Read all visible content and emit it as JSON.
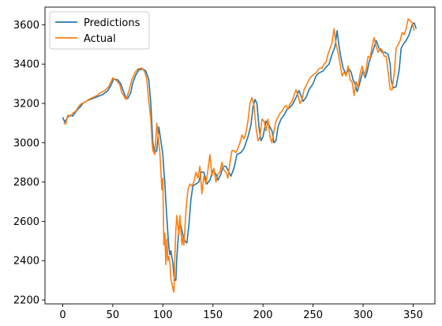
{
  "chart_data": {
    "type": "line",
    "title": "",
    "xlabel": "",
    "ylabel": "",
    "xlim": [
      -17.7,
      371.7
    ],
    "ylim": [
      2180,
      3690
    ],
    "xticks": [
      0,
      50,
      100,
      150,
      200,
      250,
      300,
      350
    ],
    "yticks": [
      2200,
      2400,
      2600,
      2800,
      3000,
      3200,
      3400,
      3600
    ],
    "grid": false,
    "legend_position": "upper-left",
    "colors": {
      "predictions": "#1f77b4",
      "actual": "#ff7f0e"
    },
    "series": [
      {
        "name": "Predictions",
        "key": "predictions",
        "points": [
          [
            0,
            3130
          ],
          [
            2,
            3105
          ],
          [
            5,
            3130
          ],
          [
            8,
            3140
          ],
          [
            10,
            3135
          ],
          [
            12,
            3150
          ],
          [
            15,
            3170
          ],
          [
            18,
            3185
          ],
          [
            20,
            3200
          ],
          [
            25,
            3215
          ],
          [
            30,
            3225
          ],
          [
            35,
            3235
          ],
          [
            40,
            3245
          ],
          [
            45,
            3265
          ],
          [
            48,
            3290
          ],
          [
            51,
            3325
          ],
          [
            55,
            3320
          ],
          [
            58,
            3300
          ],
          [
            60,
            3270
          ],
          [
            63,
            3230
          ],
          [
            65,
            3225
          ],
          [
            68,
            3255
          ],
          [
            70,
            3305
          ],
          [
            73,
            3345
          ],
          [
            76,
            3370
          ],
          [
            80,
            3375
          ],
          [
            83,
            3365
          ],
          [
            86,
            3320
          ],
          [
            88,
            3200
          ],
          [
            89,
            3100
          ],
          [
            90,
            3000
          ],
          [
            92,
            2950
          ],
          [
            94,
            2960
          ],
          [
            96,
            3080
          ],
          [
            98,
            3010
          ],
          [
            100,
            2940
          ],
          [
            101,
            2860
          ],
          [
            102,
            2800
          ],
          [
            103,
            2700
          ],
          [
            104,
            2620
          ],
          [
            105,
            2540
          ],
          [
            106,
            2470
          ],
          [
            107,
            2430
          ],
          [
            108,
            2450
          ],
          [
            110,
            2390
          ],
          [
            111,
            2320
          ],
          [
            112,
            2300
          ],
          [
            113,
            2300
          ],
          [
            114,
            2420
          ],
          [
            116,
            2560
          ],
          [
            118,
            2580
          ],
          [
            120,
            2530
          ],
          [
            122,
            2500
          ],
          [
            124,
            2490
          ],
          [
            126,
            2580
          ],
          [
            128,
            2710
          ],
          [
            130,
            2780
          ],
          [
            133,
            2790
          ],
          [
            136,
            2800
          ],
          [
            138,
            2850
          ],
          [
            141,
            2850
          ],
          [
            144,
            2790
          ],
          [
            147,
            2810
          ],
          [
            150,
            2860
          ],
          [
            153,
            2840
          ],
          [
            155,
            2810
          ],
          [
            158,
            2840
          ],
          [
            160,
            2880
          ],
          [
            163,
            2880
          ],
          [
            166,
            2850
          ],
          [
            168,
            2830
          ],
          [
            171,
            2870
          ],
          [
            174,
            2940
          ],
          [
            178,
            2950
          ],
          [
            181,
            2970
          ],
          [
            185,
            3030
          ],
          [
            188,
            3090
          ],
          [
            190,
            3180
          ],
          [
            192,
            3220
          ],
          [
            194,
            3200
          ],
          [
            196,
            3080
          ],
          [
            198,
            3010
          ],
          [
            200,
            3030
          ],
          [
            203,
            3110
          ],
          [
            206,
            3090
          ],
          [
            209,
            3060
          ],
          [
            211,
            3000
          ],
          [
            213,
            3010
          ],
          [
            215,
            3080
          ],
          [
            218,
            3120
          ],
          [
            221,
            3140
          ],
          [
            224,
            3170
          ],
          [
            227,
            3180
          ],
          [
            230,
            3200
          ],
          [
            233,
            3230
          ],
          [
            236,
            3265
          ],
          [
            238,
            3240
          ],
          [
            240,
            3210
          ],
          [
            243,
            3230
          ],
          [
            246,
            3270
          ],
          [
            250,
            3300
          ],
          [
            253,
            3340
          ],
          [
            256,
            3355
          ],
          [
            260,
            3365
          ],
          [
            263,
            3385
          ],
          [
            266,
            3400
          ],
          [
            269,
            3450
          ],
          [
            272,
            3490
          ],
          [
            274,
            3570
          ],
          [
            276,
            3490
          ],
          [
            278,
            3430
          ],
          [
            280,
            3380
          ],
          [
            283,
            3350
          ],
          [
            286,
            3375
          ],
          [
            288,
            3360
          ],
          [
            290,
            3320
          ],
          [
            292,
            3300
          ],
          [
            294,
            3260
          ],
          [
            296,
            3290
          ],
          [
            298,
            3330
          ],
          [
            300,
            3370
          ],
          [
            302,
            3330
          ],
          [
            304,
            3360
          ],
          [
            306,
            3410
          ],
          [
            308,
            3440
          ],
          [
            310,
            3470
          ],
          [
            313,
            3520
          ],
          [
            316,
            3480
          ],
          [
            319,
            3460
          ],
          [
            322,
            3460
          ],
          [
            325,
            3450
          ],
          [
            327,
            3400
          ],
          [
            328,
            3320
          ],
          [
            330,
            3280
          ],
          [
            333,
            3285
          ],
          [
            336,
            3370
          ],
          [
            338,
            3480
          ],
          [
            340,
            3500
          ],
          [
            343,
            3520
          ],
          [
            346,
            3550
          ],
          [
            349,
            3600
          ],
          [
            351,
            3610
          ],
          [
            353,
            3580
          ]
        ]
      },
      {
        "name": "Actual",
        "key": "actual",
        "points": [
          [
            1,
            3100
          ],
          [
            3,
            3095
          ],
          [
            5,
            3140
          ],
          [
            8,
            3135
          ],
          [
            10,
            3150
          ],
          [
            13,
            3160
          ],
          [
            16,
            3185
          ],
          [
            19,
            3200
          ],
          [
            22,
            3205
          ],
          [
            26,
            3220
          ],
          [
            30,
            3230
          ],
          [
            34,
            3240
          ],
          [
            38,
            3255
          ],
          [
            42,
            3265
          ],
          [
            46,
            3285
          ],
          [
            50,
            3330
          ],
          [
            54,
            3315
          ],
          [
            57,
            3295
          ],
          [
            59,
            3255
          ],
          [
            61,
            3240
          ],
          [
            63,
            3220
          ],
          [
            66,
            3260
          ],
          [
            69,
            3320
          ],
          [
            72,
            3355
          ],
          [
            75,
            3375
          ],
          [
            79,
            3380
          ],
          [
            82,
            3360
          ],
          [
            84,
            3320
          ],
          [
            86,
            3210
          ],
          [
            88,
            3120
          ],
          [
            89,
            3020
          ],
          [
            90,
            2960
          ],
          [
            92,
            2940
          ],
          [
            94,
            3100
          ],
          [
            96,
            3000
          ],
          [
            97,
            2950
          ],
          [
            98,
            2860
          ],
          [
            99,
            2760
          ],
          [
            100,
            2820
          ],
          [
            101,
            2480
          ],
          [
            102,
            2540
          ],
          [
            103,
            2380
          ],
          [
            104,
            2510
          ],
          [
            105,
            2400
          ],
          [
            106,
            2420
          ],
          [
            107,
            2390
          ],
          [
            108,
            2310
          ],
          [
            110,
            2260
          ],
          [
            111,
            2240
          ],
          [
            112,
            2420
          ],
          [
            113,
            2560
          ],
          [
            114,
            2630
          ],
          [
            115,
            2580
          ],
          [
            116,
            2530
          ],
          [
            117,
            2630
          ],
          [
            118,
            2560
          ],
          [
            119,
            2480
          ],
          [
            120,
            2520
          ],
          [
            121,
            2480
          ],
          [
            122,
            2560
          ],
          [
            123,
            2650
          ],
          [
            125,
            2760
          ],
          [
            127,
            2790
          ],
          [
            129,
            2780
          ],
          [
            131,
            2800
          ],
          [
            133,
            2850
          ],
          [
            135,
            2820
          ],
          [
            137,
            2880
          ],
          [
            139,
            2740
          ],
          [
            141,
            2830
          ],
          [
            143,
            2790
          ],
          [
            145,
            2860
          ],
          [
            147,
            2940
          ],
          [
            149,
            2830
          ],
          [
            151,
            2870
          ],
          [
            153,
            2800
          ],
          [
            155,
            2840
          ],
          [
            157,
            2850
          ],
          [
            159,
            2900
          ],
          [
            161,
            2860
          ],
          [
            163,
            2850
          ],
          [
            165,
            2820
          ],
          [
            167,
            2900
          ],
          [
            169,
            2960
          ],
          [
            171,
            2960
          ],
          [
            173,
            2950
          ],
          [
            175,
            2970
          ],
          [
            177,
            3000
          ],
          [
            179,
            3040
          ],
          [
            181,
            3020
          ],
          [
            183,
            3050
          ],
          [
            185,
            3110
          ],
          [
            187,
            3200
          ],
          [
            189,
            3230
          ],
          [
            191,
            3190
          ],
          [
            193,
            3080
          ],
          [
            195,
            3010
          ],
          [
            197,
            3030
          ],
          [
            199,
            3120
          ],
          [
            201,
            3110
          ],
          [
            203,
            3060
          ],
          [
            205,
            3120
          ],
          [
            207,
            3030
          ],
          [
            209,
            3000
          ],
          [
            211,
            3060
          ],
          [
            213,
            3110
          ],
          [
            215,
            3130
          ],
          [
            217,
            3150
          ],
          [
            219,
            3160
          ],
          [
            221,
            3180
          ],
          [
            223,
            3190
          ],
          [
            225,
            3170
          ],
          [
            227,
            3200
          ],
          [
            229,
            3210
          ],
          [
            231,
            3240
          ],
          [
            233,
            3270
          ],
          [
            235,
            3240
          ],
          [
            237,
            3200
          ],
          [
            239,
            3220
          ],
          [
            241,
            3270
          ],
          [
            243,
            3290
          ],
          [
            245,
            3310
          ],
          [
            247,
            3330
          ],
          [
            249,
            3340
          ],
          [
            251,
            3350
          ],
          [
            253,
            3355
          ],
          [
            255,
            3370
          ],
          [
            257,
            3380
          ],
          [
            259,
            3380
          ],
          [
            261,
            3400
          ],
          [
            263,
            3410
          ],
          [
            265,
            3450
          ],
          [
            267,
            3480
          ],
          [
            269,
            3510
          ],
          [
            271,
            3580
          ],
          [
            273,
            3500
          ],
          [
            275,
            3460
          ],
          [
            277,
            3400
          ],
          [
            279,
            3340
          ],
          [
            281,
            3360
          ],
          [
            283,
            3340
          ],
          [
            285,
            3390
          ],
          [
            287,
            3320
          ],
          [
            289,
            3310
          ],
          [
            291,
            3240
          ],
          [
            293,
            3310
          ],
          [
            295,
            3280
          ],
          [
            297,
            3350
          ],
          [
            299,
            3390
          ],
          [
            301,
            3340
          ],
          [
            303,
            3370
          ],
          [
            305,
            3440
          ],
          [
            307,
            3430
          ],
          [
            309,
            3490
          ],
          [
            311,
            3535
          ],
          [
            313,
            3490
          ],
          [
            315,
            3460
          ],
          [
            317,
            3480
          ],
          [
            319,
            3470
          ],
          [
            321,
            3440
          ],
          [
            323,
            3440
          ],
          [
            325,
            3360
          ],
          [
            327,
            3270
          ],
          [
            329,
            3270
          ],
          [
            331,
            3350
          ],
          [
            333,
            3480
          ],
          [
            335,
            3500
          ],
          [
            337,
            3520
          ],
          [
            339,
            3560
          ],
          [
            341,
            3550
          ],
          [
            343,
            3580
          ],
          [
            345,
            3630
          ],
          [
            347,
            3620
          ],
          [
            349,
            3610
          ],
          [
            351,
            3570
          ]
        ]
      }
    ]
  }
}
